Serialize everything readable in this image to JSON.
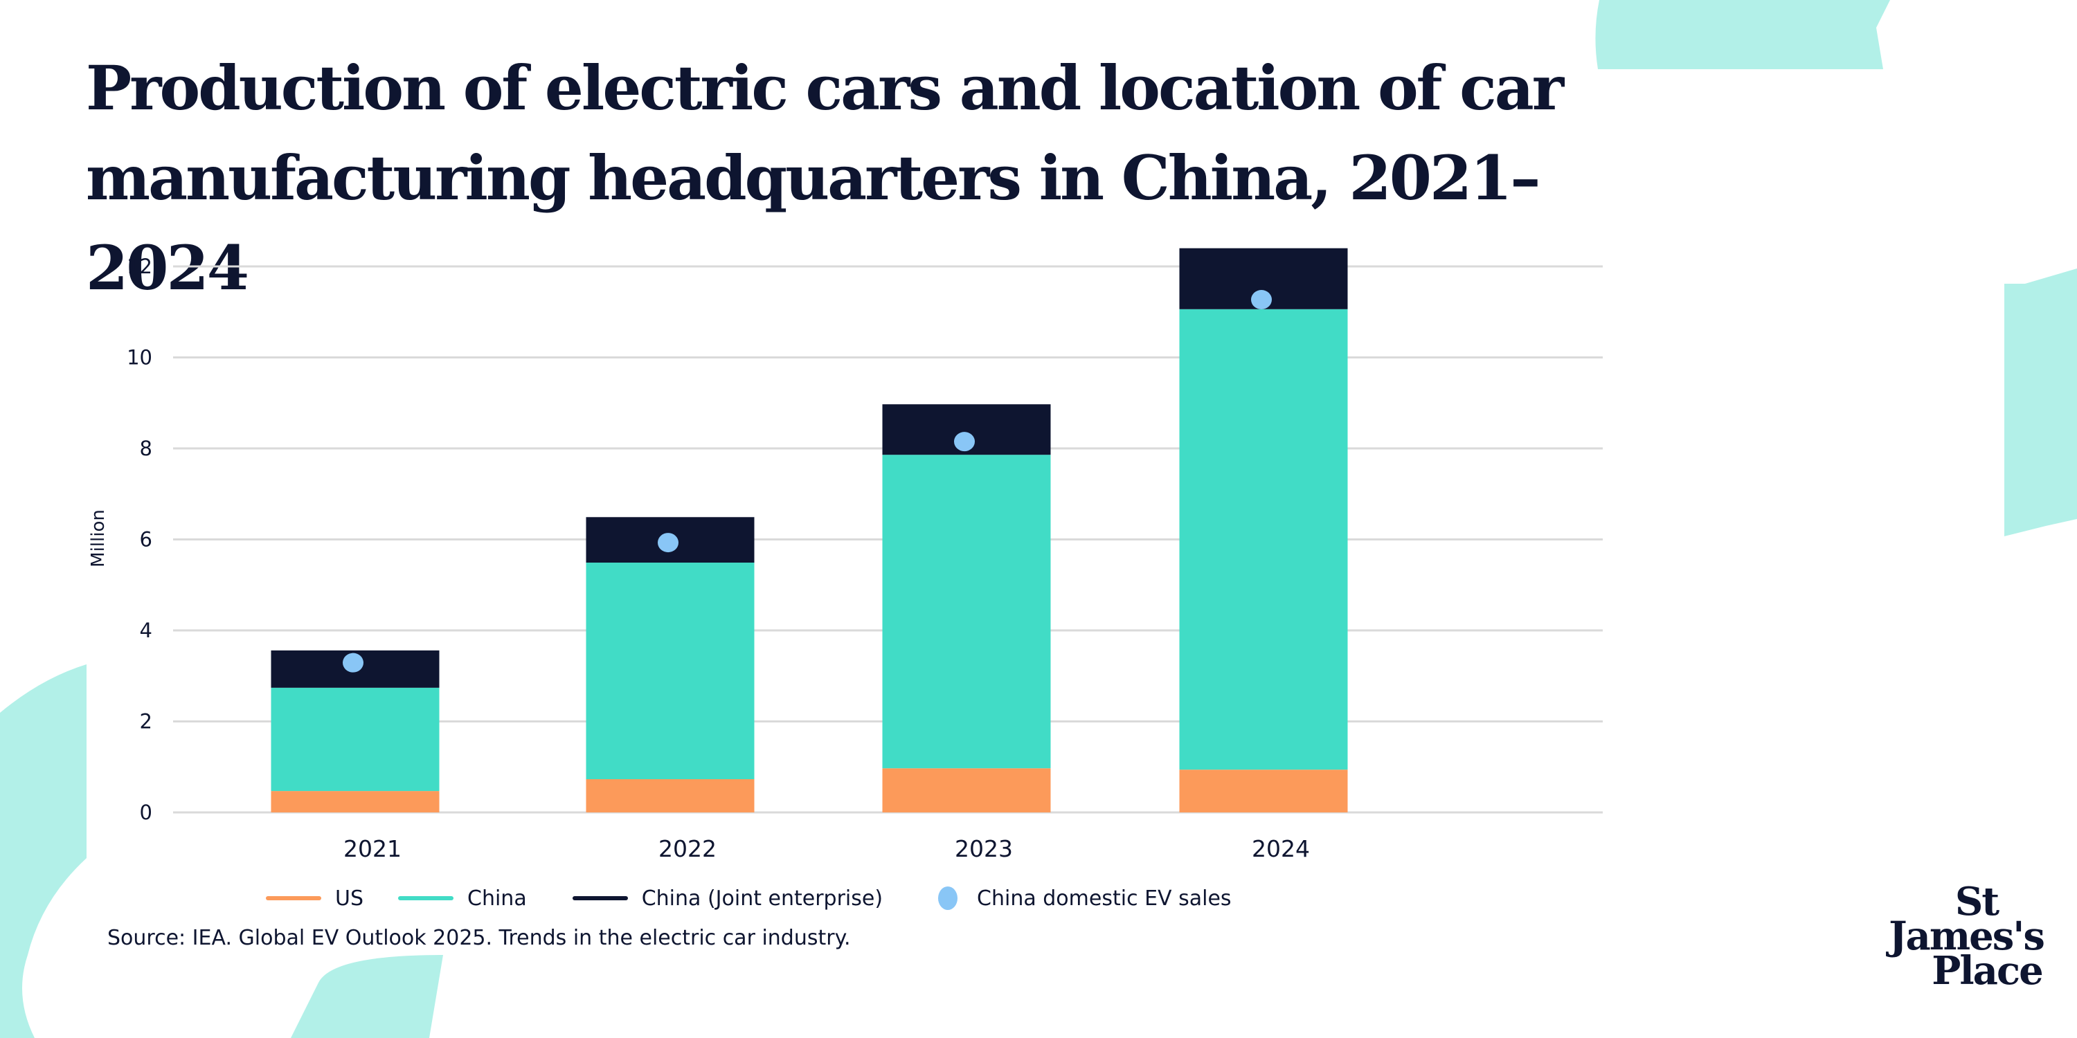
{
  "title": "Production of electric cars and location of car manufacturing headquarters in China, 2021–2024",
  "source": "Source: IEA. Global EV Outlook 2025. Trends in the electric car industry.",
  "logo": {
    "line1": "St",
    "line2": "James's",
    "line3": "Place"
  },
  "colors": {
    "us": "#fc9a5a",
    "china": "#41dcc6",
    "china_joint": "#0e1530",
    "domestic_sales": "#89c6f6",
    "grid": "#dadada",
    "decoration": "#b2f0e8"
  },
  "chart_data": {
    "type": "bar",
    "stacked": true,
    "title": "Production of electric cars and location of car manufacturing headquarters in China, 2021–2024",
    "xlabel": "",
    "ylabel": "Million",
    "ylim": [
      0,
      12.5
    ],
    "yticks": [
      0,
      2,
      4,
      6,
      8,
      10,
      12
    ],
    "ytick_labels": [
      "0",
      "2",
      "4",
      "6",
      "8",
      "10",
      "12"
    ],
    "grid": true,
    "legend_position": "bottom",
    "categories": [
      "2021",
      "2022",
      "2023",
      "2024"
    ],
    "series": [
      {
        "name": "US",
        "kind": "bar",
        "color_key": "us",
        "values": [
          0.47,
          0.73,
          0.97,
          0.94
        ]
      },
      {
        "name": "China",
        "kind": "bar",
        "color_key": "china",
        "values": [
          2.27,
          4.76,
          6.89,
          10.12
        ]
      },
      {
        "name": "China (Joint enterprise)",
        "kind": "bar",
        "color_key": "china_joint",
        "values": [
          0.82,
          1.0,
          1.11,
          1.34
        ]
      },
      {
        "name": "China domestic EV sales",
        "kind": "point",
        "color_key": "domestic_sales",
        "values": [
          3.29,
          5.93,
          8.15,
          11.27
        ]
      }
    ]
  }
}
